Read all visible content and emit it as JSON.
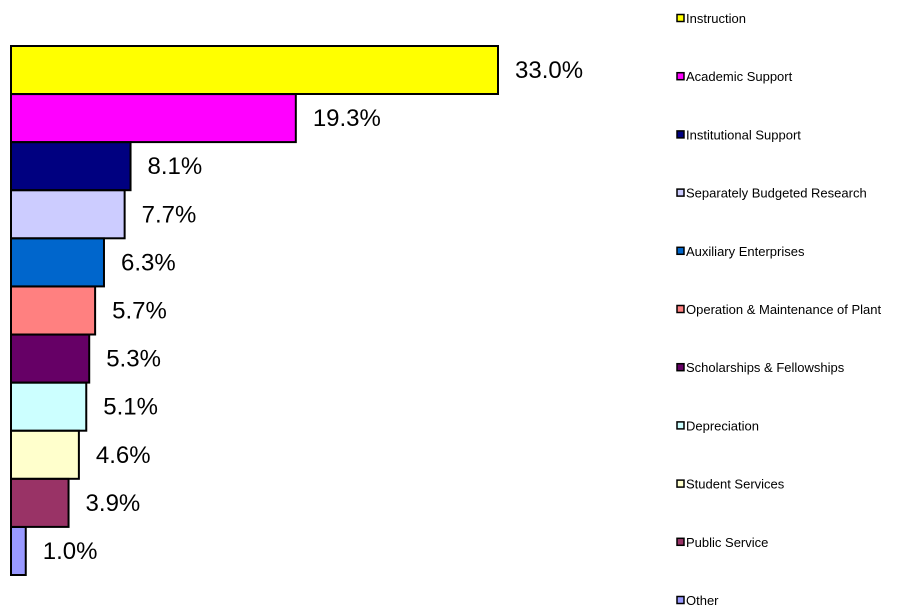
{
  "chart_data": {
    "type": "bar",
    "orientation": "horizontal",
    "xlim": [
      0,
      33.0
    ],
    "grid": false,
    "legend_position": "right",
    "categories": [
      "Instruction",
      "Academic Support",
      "Institutional Support",
      "Separately Budgeted Research",
      "Auxiliary Enterprises",
      "Operation & Maintenance of Plant",
      "Scholarships & Fellowships",
      "Depreciation",
      "Student Services",
      "Public Service",
      "Other"
    ],
    "values": [
      33.0,
      19.3,
      8.1,
      7.7,
      6.3,
      5.7,
      5.3,
      5.1,
      4.6,
      3.9,
      1.0
    ],
    "value_labels": [
      "33.0%",
      "19.3%",
      "8.1%",
      "7.7%",
      "6.3%",
      "5.7%",
      "5.3%",
      "5.1%",
      "4.6%",
      "3.9%",
      "1.0%"
    ],
    "colors": [
      "#FFFF00",
      "#FF00FF",
      "#000080",
      "#CCCCFF",
      "#0066CC",
      "#FF8080",
      "#660066",
      "#CCFFFF",
      "#FFFFCC",
      "#993366",
      "#9999FF"
    ]
  }
}
